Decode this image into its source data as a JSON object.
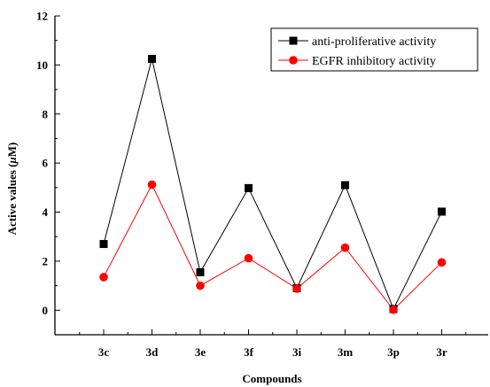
{
  "chart_data": {
    "type": "line",
    "categories": [
      "3c",
      "3d",
      "3e",
      "3f",
      "3i",
      "3m",
      "3p",
      "3r"
    ],
    "series": [
      {
        "name": "anti-proliferative activity",
        "values": [
          2.7,
          10.25,
          1.55,
          4.98,
          0.9,
          5.1,
          0.05,
          4.02
        ],
        "color": "#000000",
        "marker": "square"
      },
      {
        "name": "EGFR inhibitory activity",
        "values": [
          1.35,
          5.12,
          1.0,
          2.12,
          0.88,
          2.55,
          0.02,
          1.95
        ],
        "color": "#ff0000",
        "marker": "circle"
      }
    ],
    "xlabel": "Compounds",
    "ylabel": "Active values (μM)",
    "ylim": [
      -1,
      12
    ],
    "yticks": [
      0,
      2,
      4,
      6,
      8,
      10,
      12
    ],
    "grid": false,
    "legend_position": "top-right"
  }
}
